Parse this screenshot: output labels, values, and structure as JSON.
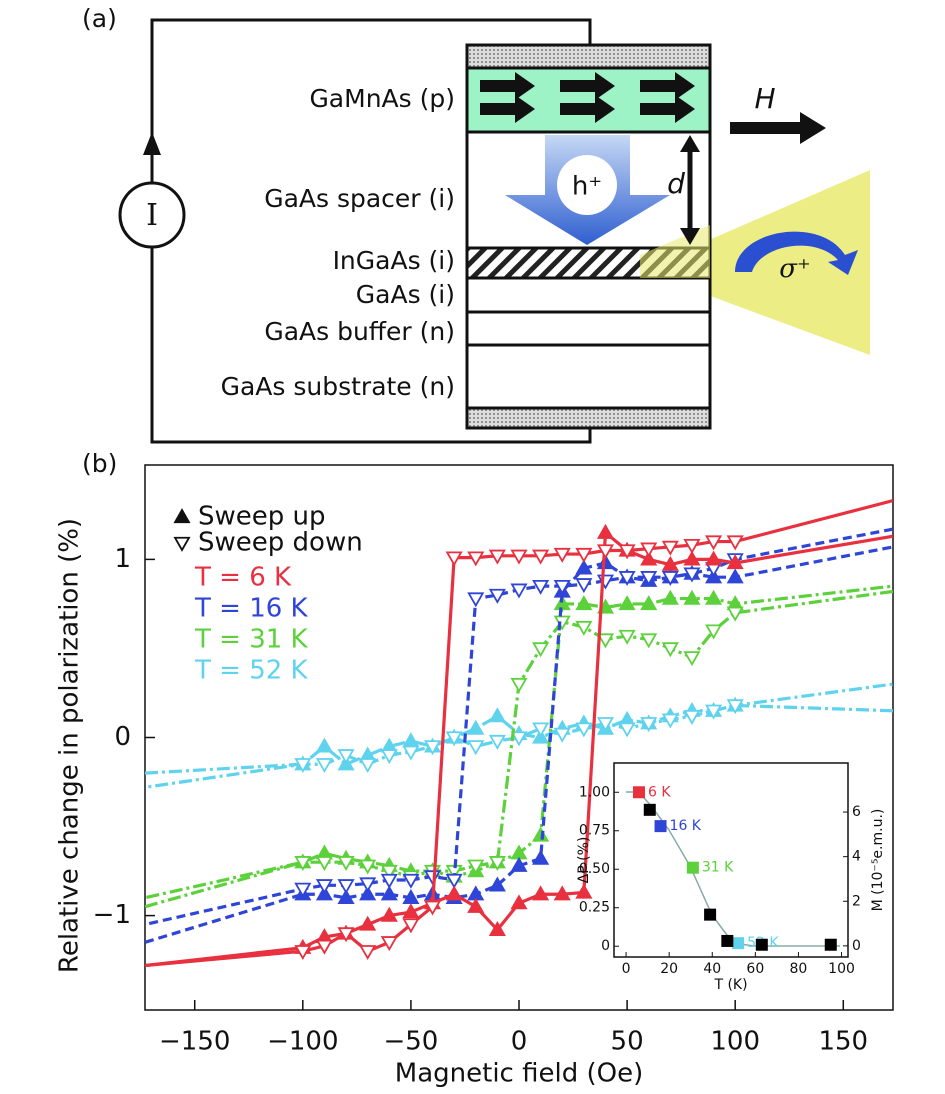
{
  "panel_labels": [
    "(a)",
    "(b)"
  ],
  "diagram": {
    "layers": [
      "GaMnAs (p)",
      "GaAs spacer (i)",
      "InGaAs (i)",
      "GaAs (i)",
      "GaAs buffer (n)",
      "GaAs substrate (n)"
    ],
    "current_source": "I",
    "carrier": "h⁺",
    "distance": "d",
    "field": "H",
    "light": "σ⁺"
  },
  "chart_data": [
    {
      "type": "line",
      "x_label": "Magnetic field (Oe)",
      "y_label": "Relative change in polarization (%)",
      "xlim": [
        -173,
        173
      ],
      "ylim": [
        -1.53,
        1.53
      ],
      "xticks": [
        {
          "value": -150,
          "label": "−150"
        },
        {
          "value": -100,
          "label": "−100"
        },
        {
          "value": -50,
          "label": "−50"
        },
        0,
        50,
        100,
        150
      ],
      "yticks": [
        {
          "value": -1,
          "label": "−1"
        },
        0,
        1
      ],
      "sweeps": [
        {
          "name": "Sweep up",
          "marker": "filled-up"
        },
        {
          "name": "Sweep down",
          "marker": "open-down"
        }
      ],
      "series": [
        {
          "name": "T = 52 K",
          "color": "#5fd3ee",
          "dash": "dashdot",
          "up": {
            "x": [
              -173,
              -100,
              -90,
              -80,
              -70,
              -60,
              -50,
              -40,
              -30,
              -20,
              -10,
              0,
              10,
              20,
              30,
              40,
              50,
              60,
              70,
              80,
              90,
              100,
              173
            ],
            "values": [
              -0.2,
              -0.15,
              -0.05,
              -0.15,
              -0.1,
              -0.05,
              -0.02,
              -0.05,
              0.0,
              0.05,
              0.12,
              0.02,
              0.0,
              0.05,
              0.08,
              0.05,
              0.1,
              0.08,
              0.12,
              0.15,
              0.15,
              0.18,
              0.3
            ]
          },
          "down": {
            "x": [
              173,
              100,
              90,
              80,
              70,
              60,
              50,
              40,
              30,
              20,
              10,
              0,
              -10,
              -20,
              -30,
              -40,
              -50,
              -60,
              -70,
              -80,
              -90,
              -100,
              -173
            ],
            "values": [
              0.15,
              0.18,
              0.15,
              0.12,
              0.1,
              0.08,
              0.05,
              0.08,
              0.05,
              0.02,
              0.05,
              0.0,
              -0.02,
              -0.05,
              0.0,
              -0.05,
              -0.08,
              -0.1,
              -0.15,
              -0.1,
              -0.15,
              -0.15,
              -0.28
            ]
          }
        },
        {
          "name": "T = 31 K",
          "color": "#5cd13c",
          "dash": "dashdot",
          "up": {
            "x": [
              -173,
              -100,
              -90,
              -80,
              -70,
              -60,
              -50,
              -40,
              -30,
              -20,
              -10,
              0,
              10,
              20,
              30,
              40,
              50,
              60,
              70,
              80,
              90,
              100,
              173
            ],
            "values": [
              -0.95,
              -0.7,
              -0.65,
              -0.68,
              -0.7,
              -0.72,
              -0.75,
              -0.75,
              -0.78,
              -0.75,
              -0.7,
              -0.65,
              -0.55,
              0.75,
              0.75,
              0.73,
              0.75,
              0.75,
              0.78,
              0.78,
              0.78,
              0.75,
              0.85
            ]
          },
          "down": {
            "x": [
              173,
              100,
              90,
              80,
              70,
              60,
              50,
              40,
              30,
              20,
              10,
              0,
              -10,
              -20,
              -30,
              -40,
              -50,
              -60,
              -70,
              -80,
              -90,
              -100,
              -173
            ],
            "values": [
              0.82,
              0.7,
              0.6,
              0.45,
              0.5,
              0.55,
              0.57,
              0.55,
              0.62,
              0.65,
              0.5,
              0.3,
              -0.7,
              -0.72,
              -0.75,
              -0.75,
              -0.78,
              -0.75,
              -0.72,
              -0.7,
              -0.7,
              -0.7,
              -0.9
            ]
          }
        },
        {
          "name": "T = 16 K",
          "color": "#2f45d8",
          "dash": "dashed",
          "up": {
            "x": [
              -173,
              -100,
              -90,
              -80,
              -70,
              -60,
              -50,
              -40,
              -30,
              -20,
              -10,
              0,
              10,
              20,
              30,
              40,
              50,
              60,
              70,
              80,
              90,
              100,
              173
            ],
            "values": [
              -1.15,
              -0.88,
              -0.88,
              -0.9,
              -0.88,
              -0.88,
              -0.9,
              -0.88,
              -0.9,
              -0.88,
              -0.83,
              -0.72,
              -0.68,
              0.82,
              0.95,
              0.98,
              0.9,
              0.88,
              0.9,
              0.92,
              0.9,
              0.9,
              1.07
            ]
          },
          "down": {
            "x": [
              173,
              100,
              90,
              80,
              70,
              60,
              50,
              40,
              30,
              20,
              10,
              0,
              -10,
              -20,
              -30,
              -40,
              -50,
              -60,
              -70,
              -80,
              -90,
              -100,
              -173
            ],
            "values": [
              1.17,
              1.0,
              0.95,
              0.92,
              0.9,
              0.9,
              0.9,
              0.88,
              0.86,
              0.85,
              0.85,
              0.83,
              0.8,
              0.78,
              -0.8,
              -0.78,
              -0.8,
              -0.8,
              -0.82,
              -0.83,
              -0.83,
              -0.85,
              -1.05
            ]
          }
        },
        {
          "name": "T = 6 K",
          "color": "#e8303f",
          "dash": "solid",
          "up": {
            "x": [
              -173,
              -100,
              -90,
              -80,
              -70,
              -60,
              -50,
              -40,
              -30,
              -20,
              -10,
              0,
              10,
              20,
              30,
              40,
              50,
              60,
              70,
              80,
              90,
              100,
              173
            ],
            "values": [
              -1.28,
              -1.18,
              -1.12,
              -1.1,
              -1.05,
              -1.0,
              -0.98,
              -0.93,
              -0.88,
              -0.95,
              -1.08,
              -0.93,
              -0.88,
              -0.88,
              -0.87,
              1.15,
              1.05,
              1.0,
              0.97,
              1.0,
              1.0,
              0.98,
              1.13
            ]
          },
          "down": {
            "x": [
              173,
              100,
              90,
              80,
              70,
              60,
              50,
              40,
              30,
              20,
              10,
              0,
              -10,
              -20,
              -30,
              -40,
              -50,
              -60,
              -70,
              -80,
              -90,
              -100,
              -173
            ],
            "values": [
              1.33,
              1.1,
              1.1,
              1.08,
              1.07,
              1.06,
              1.05,
              1.05,
              1.03,
              1.03,
              1.02,
              1.02,
              1.02,
              1.01,
              1.01,
              -0.95,
              -1.05,
              -1.15,
              -1.2,
              -1.1,
              -1.17,
              -1.2,
              -1.28
            ]
          }
        }
      ]
    },
    {
      "type": "scatter",
      "x_label": "T (K)",
      "y_label": "ΔP (%)",
      "y2_label": "M (10⁻⁵e.m.u.)",
      "xlim": [
        -5.6,
        103
      ],
      "ylim": [
        -0.07,
        1.19
      ],
      "y2lim": [
        -0.5,
        8.2
      ],
      "xticks": [
        0,
        20,
        40,
        60,
        80,
        100
      ],
      "yticks": [
        0,
        0.25,
        {
          "value": 0.5,
          "label": "0.50"
        },
        0.75,
        {
          "value": 1,
          "label": "1.00"
        }
      ],
      "y2ticks": [
        0,
        2,
        4,
        6
      ],
      "series": [
        {
          "x": [
            6,
            16,
            31,
            52
          ],
          "values": [
            1.0,
            0.78,
            0.51,
            0.02
          ],
          "colors": [
            "#e8303f",
            "#2f45d8",
            "#5cd13c",
            "#5fd3ee"
          ],
          "point_labels": [
            "6 K",
            "16 K",
            "31 K",
            "52 K"
          ]
        },
        {
          "x": [
            11,
            39,
            47,
            63,
            95
          ],
          "values": [
            6.1,
            1.4,
            0.22,
            0.05,
            0.05
          ],
          "color": "#000000",
          "axis": "y2"
        }
      ]
    }
  ]
}
